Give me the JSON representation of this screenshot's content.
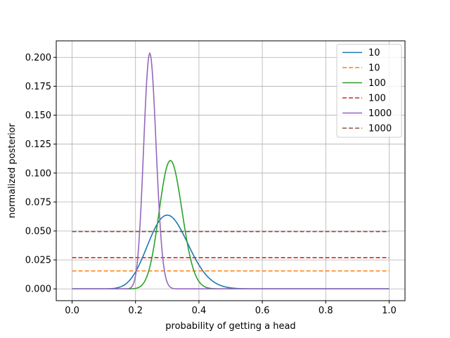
{
  "chart_data": {
    "type": "line",
    "xlabel": "probability of getting a head",
    "ylabel": "normalized posterior",
    "xlim": [
      -0.05,
      1.05
    ],
    "ylim": [
      -0.0102,
      0.2142
    ],
    "xticks": [
      "0.0",
      "0.2",
      "0.4",
      "0.6",
      "0.8",
      "1.0"
    ],
    "yticks": [
      "0.000",
      "0.025",
      "0.050",
      "0.075",
      "0.100",
      "0.125",
      "0.150",
      "0.175",
      "0.200"
    ],
    "grid": true,
    "legend_position": "top-right",
    "series": [
      {
        "name": "10",
        "style": "solid",
        "color": "#1f77b4",
        "distribution": "beta",
        "mode": 0.3,
        "peak": 0.0637
      },
      {
        "name": "10",
        "style": "dashed",
        "color": "#ff7f0e",
        "distribution": "constant",
        "value": 0.0155
      },
      {
        "name": "100",
        "style": "solid",
        "color": "#2ca02c",
        "distribution": "beta",
        "mode": 0.31,
        "peak": 0.1108
      },
      {
        "name": "100",
        "style": "dashed",
        "color": "#d62728",
        "distribution": "constant",
        "value": 0.027
      },
      {
        "name": "1000",
        "style": "solid",
        "color": "#9467bd",
        "distribution": "beta",
        "mode": 0.245,
        "peak": 0.2035
      },
      {
        "name": "1000",
        "style": "dashed",
        "color": "#8c564b",
        "distribution": "constant",
        "value": 0.0495
      }
    ]
  }
}
